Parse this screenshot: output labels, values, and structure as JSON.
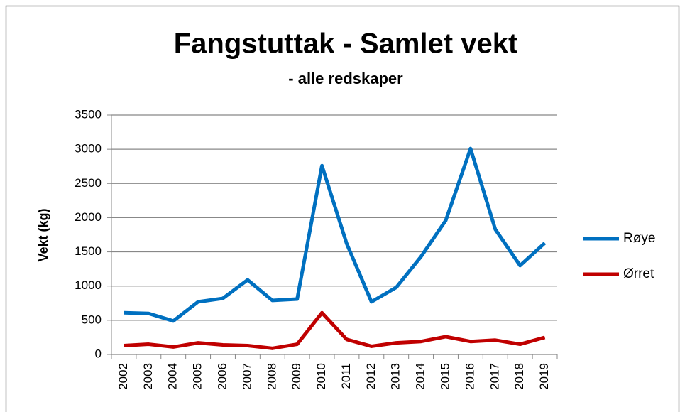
{
  "chart_data": {
    "type": "line",
    "title": "Fangstuttak - Samlet vekt",
    "subtitle": "- alle redskaper",
    "y_label": "Vekt (kg)",
    "categories": [
      "2002",
      "2003",
      "2004",
      "2005",
      "2006",
      "2007",
      "2008",
      "2009",
      "2010",
      "2011",
      "2012",
      "2013",
      "2014",
      "2015",
      "2016",
      "2017",
      "2018",
      "2019"
    ],
    "series": [
      {
        "name": "Røye",
        "color": "#0070c0",
        "values": [
          610,
          600,
          490,
          770,
          820,
          1090,
          790,
          810,
          2760,
          1620,
          770,
          980,
          1430,
          1960,
          3010,
          1830,
          1300,
          1630
        ]
      },
      {
        "name": "Ørret",
        "color": "#c00000",
        "values": [
          130,
          150,
          110,
          170,
          140,
          130,
          90,
          150,
          610,
          220,
          120,
          170,
          190,
          260,
          190,
          210,
          150,
          250
        ]
      }
    ],
    "ylim": [
      0,
      3500
    ],
    "yticks": [
      0,
      500,
      1000,
      1500,
      2000,
      2500,
      3000,
      3500
    ],
    "grid": true,
    "legend": "right"
  }
}
